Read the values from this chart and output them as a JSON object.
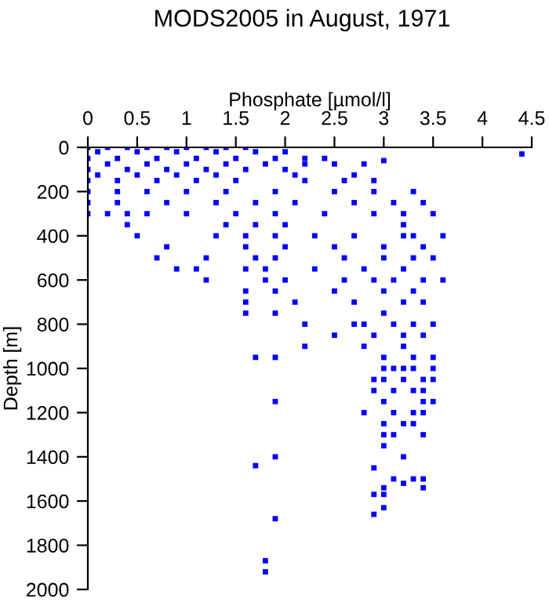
{
  "chart_data": {
    "type": "scatter",
    "title": "MODS2005 in August, 1971",
    "xlabel": "Phosphate [µmol/l]",
    "ylabel": "Depth [m]",
    "xlim": [
      0,
      4.5
    ],
    "xticks": [
      0,
      0.5,
      1,
      1.5,
      2,
      2.5,
      3,
      3.5,
      4,
      4.5
    ],
    "ylim": [
      2000,
      0
    ],
    "yticks": [
      0,
      200,
      400,
      600,
      800,
      1000,
      1200,
      1400,
      1600,
      1800,
      2000
    ],
    "grid": false,
    "marker": "square",
    "series": [
      {
        "color": "#0000ff",
        "x": [
          0,
          0.2,
          0.4,
          0.6,
          0.8,
          1.0,
          1.2,
          1.4,
          1.6,
          0.1,
          0.5,
          0.9,
          1.3,
          1.7,
          2.0,
          0,
          0.3,
          0.7,
          1.1,
          1.5,
          1.9,
          2.2,
          2.4,
          0.2,
          0.6,
          1.0,
          1.4,
          1.8,
          2.2,
          2.5,
          2.8,
          0,
          0.4,
          0.8,
          1.2,
          1.6,
          2.0,
          0.1,
          0.5,
          0.9,
          1.3,
          2.1,
          2.7,
          0,
          0.3,
          0.7,
          1.1,
          1.5,
          2.2,
          2.6,
          2.9,
          0,
          0.3,
          0.6,
          1.0,
          1.4,
          1.9,
          2.5,
          2.9,
          3.3,
          0,
          0.3,
          0.8,
          1.3,
          1.7,
          2.1,
          2.7,
          3.1,
          3.4,
          0,
          0.2,
          0.4,
          0.6,
          1.0,
          1.5,
          1.9,
          2.4,
          2.9,
          3.2,
          3.5,
          4.4,
          3.0,
          0.4,
          1.4,
          1.7,
          2.0,
          3.2,
          0.5,
          1.3,
          1.6,
          1.9,
          2.3,
          2.7,
          3.2,
          3.3,
          3.6,
          0.8,
          1.6,
          2.0,
          2.5,
          3.0,
          3.4,
          0.7,
          1.2,
          1.7,
          1.9,
          2.6,
          3.0,
          3.3,
          3.5,
          0.9,
          1.1,
          1.6,
          1.8,
          2.3,
          2.8,
          3.2,
          1.2,
          1.8,
          2.0,
          2.6,
          2.9,
          3.1,
          3.4,
          3.6,
          1.6,
          1.9,
          2.5,
          3.0,
          3.3,
          1.6,
          2.1,
          2.7,
          3.2,
          3.4,
          1.6,
          1.9,
          3.0,
          2.2,
          2.7,
          2.8,
          3.1,
          3.3,
          3.5,
          2.5,
          2.9,
          3.2,
          3.4,
          2.2,
          2.8,
          3.2,
          1.7,
          1.9,
          3.0,
          3.3,
          3.5,
          3.0,
          3.1,
          3.2,
          3.3,
          3.5,
          2.9,
          3.0,
          3.2,
          3.4,
          3.5,
          2.9,
          3.1,
          3.3,
          3.4,
          1.9,
          3.0,
          3.4,
          3.5,
          2.8,
          3.1,
          3.3,
          3.4,
          3.0,
          3.2,
          3.3,
          3.0,
          3.1,
          3.4,
          3.0,
          1.9,
          3.2,
          1.7,
          2.9,
          3.1,
          3.3,
          3.4,
          3.2,
          3.4,
          3.0,
          2.9,
          3.0,
          3.0,
          2.9,
          1.9,
          1.8,
          1.8
        ],
        "values": [
          0,
          0,
          0,
          0,
          0,
          0,
          0,
          0,
          0,
          20,
          20,
          20,
          20,
          20,
          20,
          50,
          50,
          50,
          50,
          50,
          50,
          50,
          50,
          75,
          75,
          75,
          75,
          75,
          75,
          75,
          75,
          100,
          100,
          100,
          100,
          100,
          100,
          125,
          125,
          125,
          125,
          125,
          125,
          150,
          150,
          150,
          150,
          150,
          150,
          150,
          150,
          200,
          200,
          200,
          200,
          200,
          200,
          200,
          200,
          200,
          250,
          250,
          250,
          250,
          250,
          250,
          250,
          250,
          250,
          300,
          300,
          300,
          300,
          300,
          300,
          300,
          300,
          300,
          300,
          300,
          30,
          60,
          350,
          350,
          350,
          350,
          350,
          400,
          400,
          400,
          400,
          400,
          400,
          400,
          400,
          400,
          450,
          450,
          450,
          450,
          450,
          450,
          500,
          500,
          500,
          500,
          500,
          500,
          500,
          500,
          550,
          550,
          550,
          550,
          550,
          550,
          550,
          600,
          600,
          600,
          600,
          600,
          600,
          600,
          600,
          650,
          650,
          650,
          650,
          650,
          700,
          700,
          700,
          700,
          700,
          750,
          750,
          750,
          800,
          800,
          800,
          800,
          800,
          800,
          850,
          850,
          850,
          850,
          900,
          900,
          900,
          950,
          950,
          950,
          950,
          950,
          1000,
          1000,
          1000,
          1000,
          1000,
          1050,
          1050,
          1050,
          1050,
          1050,
          1100,
          1100,
          1100,
          1100,
          1150,
          1150,
          1150,
          1150,
          1200,
          1200,
          1200,
          1200,
          1250,
          1250,
          1250,
          1300,
          1300,
          1300,
          1350,
          1400,
          1400,
          1440,
          1450,
          1500,
          1500,
          1500,
          1520,
          1540,
          1540,
          1570,
          1570,
          1630,
          1660,
          1680,
          1870,
          1920
        ]
      }
    ]
  }
}
